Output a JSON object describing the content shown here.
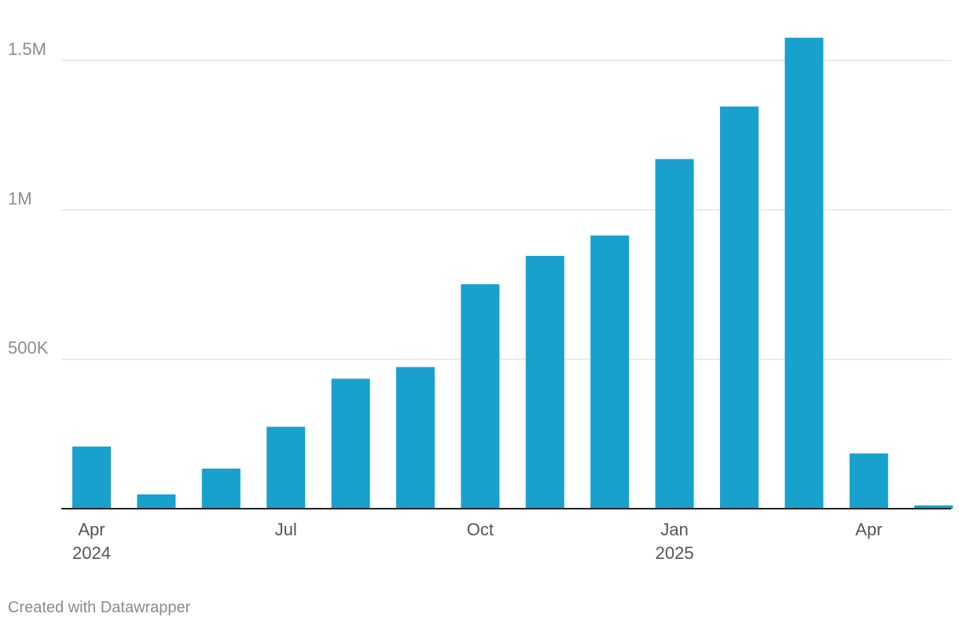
{
  "chart_data": {
    "type": "bar",
    "categories": [
      "2024-04",
      "2024-05",
      "2024-06",
      "2024-07",
      "2024-08",
      "2024-09",
      "2024-10",
      "2024-11",
      "2024-12",
      "2025-01",
      "2025-02",
      "2025-03",
      "2025-04",
      "2025-05"
    ],
    "values": [
      208000,
      48000,
      134000,
      274000,
      435000,
      474000,
      751000,
      846000,
      914000,
      1170000,
      1346000,
      1576000,
      185000,
      11000
    ],
    "ylim": [
      0,
      1600000
    ],
    "y_ticks": [
      {
        "value": 500000,
        "label": "500K"
      },
      {
        "value": 1000000,
        "label": "1M"
      },
      {
        "value": 1500000,
        "label": "1.5M"
      }
    ],
    "x_ticks": [
      {
        "index": 0,
        "month": "Apr",
        "year": "2024"
      },
      {
        "index": 3,
        "month": "Jul",
        "year": ""
      },
      {
        "index": 6,
        "month": "Oct",
        "year": ""
      },
      {
        "index": 9,
        "month": "Jan",
        "year": "2025"
      },
      {
        "index": 12,
        "month": "Apr",
        "year": ""
      }
    ],
    "grid": true,
    "bar_color": "#18a1cd",
    "grid_color": "#e3e3e3",
    "baseline_color": "#222222"
  },
  "footer": {
    "credit": "Created with Datawrapper"
  }
}
